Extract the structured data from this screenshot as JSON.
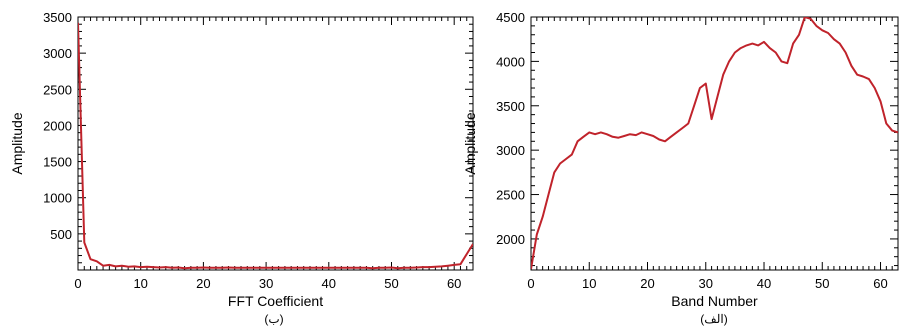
{
  "chart_data": [
    {
      "type": "line",
      "panel": "left",
      "caption": "(ب)",
      "xlabel": "FFT Coefficient",
      "ylabel": "Amplitude",
      "xlim": [
        0,
        63
      ],
      "ylim": [
        0,
        3500
      ],
      "xticks": [
        0,
        10,
        20,
        30,
        40,
        50,
        60
      ],
      "yticks": [
        500,
        1000,
        1500,
        2000,
        2500,
        3000,
        3500
      ],
      "color": "#c0232b",
      "x": [
        0,
        1,
        2,
        3,
        4,
        5,
        6,
        7,
        8,
        9,
        10,
        11,
        12,
        13,
        14,
        15,
        16,
        17,
        18,
        19,
        20,
        21,
        22,
        23,
        24,
        25,
        26,
        27,
        28,
        29,
        30,
        31,
        32,
        33,
        34,
        35,
        36,
        37,
        38,
        39,
        40,
        41,
        42,
        43,
        44,
        45,
        46,
        47,
        48,
        49,
        50,
        51,
        52,
        53,
        54,
        55,
        56,
        57,
        58,
        59,
        60,
        61,
        62,
        63
      ],
      "values": [
        3420,
        380,
        150,
        120,
        60,
        70,
        50,
        60,
        45,
        50,
        40,
        45,
        40,
        35,
        40,
        30,
        35,
        25,
        30,
        30,
        35,
        30,
        30,
        30,
        35,
        30,
        30,
        30,
        30,
        30,
        30,
        30,
        30,
        30,
        30,
        30,
        30,
        30,
        30,
        30,
        30,
        30,
        30,
        30,
        30,
        30,
        30,
        25,
        30,
        30,
        35,
        25,
        30,
        30,
        35,
        40,
        40,
        45,
        50,
        60,
        70,
        80,
        220,
        360
      ]
    },
    {
      "type": "line",
      "panel": "right",
      "caption": "(الف)",
      "xlabel": "Band Number",
      "ylabel": "Amplitude",
      "xlim": [
        0,
        63
      ],
      "ylim": [
        1650,
        4500
      ],
      "xticks": [
        0,
        10,
        20,
        30,
        40,
        50,
        60
      ],
      "yticks": [
        2000,
        2500,
        3000,
        3500,
        4000,
        4500
      ],
      "color": "#c0232b",
      "x": [
        0,
        1,
        2,
        3,
        4,
        5,
        6,
        7,
        8,
        9,
        10,
        11,
        12,
        13,
        14,
        15,
        16,
        17,
        18,
        19,
        20,
        21,
        22,
        23,
        24,
        25,
        26,
        27,
        28,
        29,
        30,
        31,
        32,
        33,
        34,
        35,
        36,
        37,
        38,
        39,
        40,
        41,
        42,
        43,
        44,
        45,
        46,
        47,
        48,
        49,
        50,
        51,
        52,
        53,
        54,
        55,
        56,
        57,
        58,
        59,
        60,
        61,
        62,
        63
      ],
      "values": [
        1660,
        2050,
        2250,
        2500,
        2750,
        2850,
        2900,
        2950,
        3100,
        3150,
        3200,
        3180,
        3200,
        3180,
        3150,
        3140,
        3160,
        3180,
        3170,
        3200,
        3180,
        3160,
        3120,
        3100,
        3150,
        3200,
        3250,
        3300,
        3500,
        3700,
        3750,
        3350,
        3600,
        3850,
        4000,
        4100,
        4150,
        4180,
        4200,
        4180,
        4220,
        4150,
        4100,
        4000,
        3980,
        4200,
        4300,
        4500,
        4480,
        4400,
        4350,
        4320,
        4250,
        4200,
        4100,
        3950,
        3850,
        3830,
        3800,
        3700,
        3550,
        3300,
        3220,
        3200
      ]
    }
  ]
}
